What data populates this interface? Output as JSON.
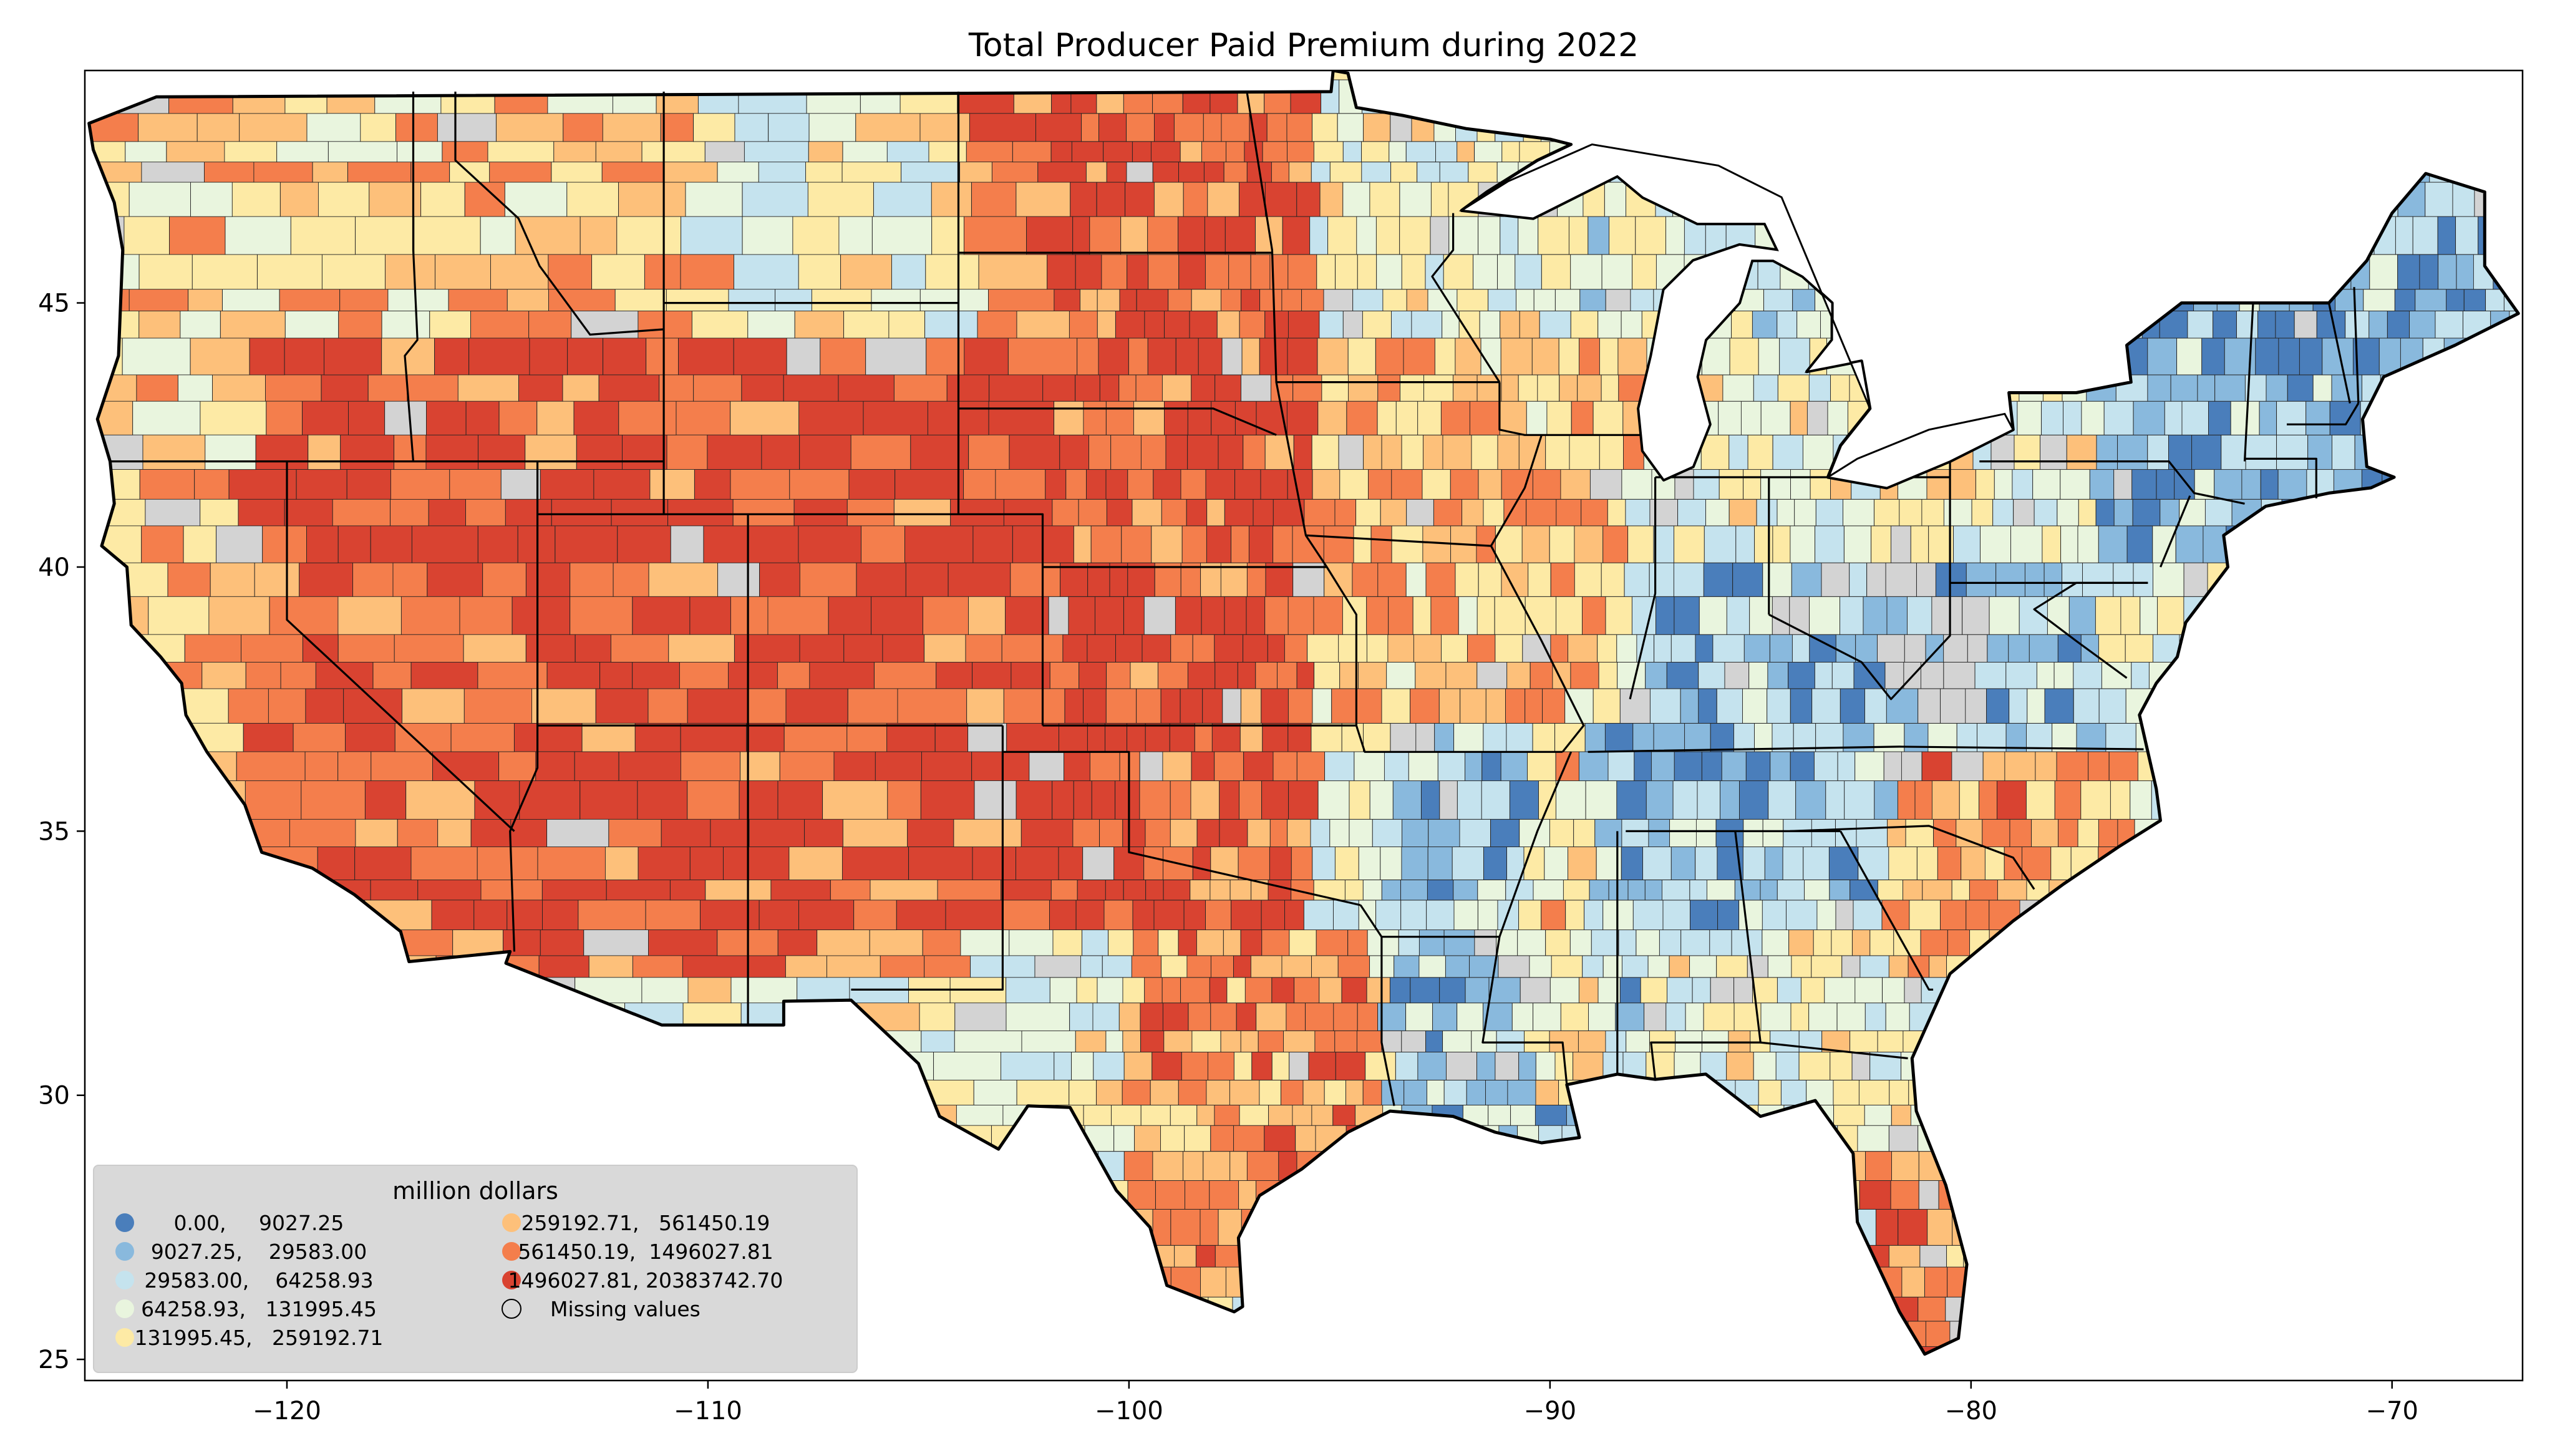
{
  "title": "Total Producer Paid Premium during 2022",
  "map": {
    "type": "choropleth",
    "region": "Contiguous United States (counties)",
    "x_axis": {
      "ticks": [
        -120,
        -110,
        -100,
        -90,
        -80,
        -70
      ],
      "range": [
        -124.8,
        -66.9
      ]
    },
    "y_axis": {
      "ticks": [
        25,
        30,
        35,
        40,
        45
      ],
      "range": [
        24.6,
        49.4
      ]
    },
    "grid": false
  },
  "legend": {
    "title": "million dollars",
    "placement": "lower-left",
    "columns": 2,
    "items": [
      {
        "label": "0.00,     9027.25",
        "color": "#4a7ebb",
        "missing": false
      },
      {
        "label": "9027.25,    29583.00",
        "color": "#89b9dd",
        "missing": false
      },
      {
        "label": "29583.00,    64258.93",
        "color": "#c5e3ee",
        "missing": false
      },
      {
        "label": "64258.93,   131995.45",
        "color": "#e9f5de",
        "missing": false
      },
      {
        "label": "131995.45,   259192.71",
        "color": "#fdeaa5",
        "missing": false
      },
      {
        "label": "259192.71,   561450.19",
        "color": "#fdc07a",
        "missing": false
      },
      {
        "label": "561450.19,  1496027.81",
        "color": "#f47e4c",
        "missing": false
      },
      {
        "label": "1496027.81, 20383742.70",
        "color": "#d94331",
        "missing": false
      },
      {
        "label": "Missing values",
        "color": "#d3d3d3",
        "missing": true
      }
    ]
  },
  "colors": {
    "class_1": "#4a7ebb",
    "class_2": "#89b9dd",
    "class_3": "#c5e3ee",
    "class_4": "#e9f5de",
    "class_5": "#fdeaa5",
    "class_6": "#fdc07a",
    "class_7": "#f47e4c",
    "class_8": "#d94331",
    "missing": "#d3d3d3"
  }
}
